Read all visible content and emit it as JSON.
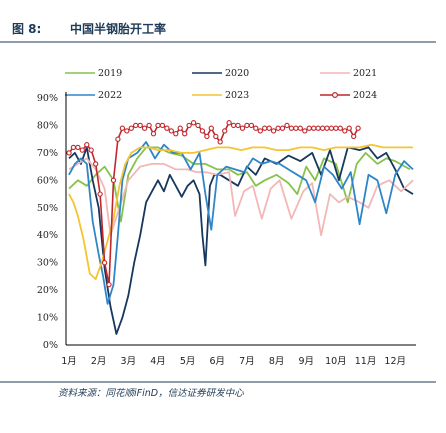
{
  "figure": {
    "label": "图 8:",
    "title": "中国半钢胎开工率"
  },
  "source": "资料来源：同花顺iFinD，信达证券研发中心",
  "chart_data": {
    "type": "line",
    "title": "中国半钢胎开工率",
    "xlabel": "",
    "ylabel": "",
    "ylim": [
      0,
      90
    ],
    "y_ticks": [
      "0%",
      "10%",
      "20%",
      "30%",
      "40%",
      "50%",
      "60%",
      "70%",
      "80%",
      "90%"
    ],
    "x_categories": [
      "1月",
      "2月",
      "3月",
      "4月",
      "5月",
      "6月",
      "7月",
      "8月",
      "9月",
      "10月",
      "11月",
      "12月"
    ],
    "legend": {
      "placement": "top",
      "entries": [
        "2019",
        "2020",
        "2021",
        "2022",
        "2023",
        "2024"
      ]
    },
    "series": [
      {
        "name": "2019",
        "color": "#86c24a",
        "x": [
          1.0,
          1.3,
          1.6,
          1.9,
          2.2,
          2.5,
          2.75,
          3.0,
          3.3,
          3.6,
          4.0,
          4.4,
          4.8,
          5.2,
          5.6,
          6.0,
          6.4,
          6.7,
          7.0,
          7.3,
          7.6,
          8.0,
          8.4,
          8.7,
          9.0,
          9.3,
          9.6,
          10.0,
          10.4,
          10.7,
          11.0,
          11.4,
          11.7,
          12.0,
          12.5
        ],
        "y": [
          57,
          60,
          58,
          62,
          65,
          60,
          45,
          62,
          68,
          72,
          72,
          70,
          69,
          66,
          66,
          64,
          64,
          62,
          63,
          58,
          60,
          62,
          59,
          55,
          65,
          60,
          68,
          66,
          52,
          66,
          70,
          66,
          68,
          67,
          64
        ]
      },
      {
        "name": "2020",
        "color": "#17375e",
        "x": [
          1.0,
          1.2,
          1.4,
          1.6,
          1.8,
          2.0,
          2.2,
          2.4,
          2.6,
          2.8,
          3.0,
          3.2,
          3.4,
          3.6,
          3.8,
          4.0,
          4.2,
          4.4,
          4.6,
          4.8,
          5.0,
          5.2,
          5.4,
          5.5,
          5.6,
          5.75,
          5.9,
          6.1,
          6.4,
          6.7,
          7.0,
          7.3,
          7.6,
          8.0,
          8.4,
          8.8,
          9.2,
          9.5,
          9.8,
          10.1,
          10.4,
          10.8,
          11.1,
          11.4,
          11.7,
          12.0,
          12.3,
          12.6
        ],
        "y": [
          68,
          70,
          66,
          72,
          60,
          50,
          28,
          14,
          4,
          10,
          18,
          30,
          40,
          52,
          56,
          60,
          56,
          62,
          58,
          54,
          58,
          60,
          55,
          40,
          29,
          58,
          62,
          62,
          60,
          58,
          65,
          62,
          68,
          66,
          69,
          67,
          70,
          62,
          71,
          60,
          72,
          71,
          72,
          68,
          70,
          64,
          57,
          55
        ]
      },
      {
        "name": "2021",
        "color": "#f2b7b7",
        "x": [
          1.0,
          1.3,
          1.6,
          1.9,
          2.2,
          2.4,
          2.7,
          3.0,
          3.4,
          3.8,
          4.2,
          4.6,
          5.0,
          5.3,
          5.6,
          6.0,
          6.4,
          6.6,
          6.9,
          7.2,
          7.5,
          7.8,
          8.1,
          8.5,
          8.9,
          9.2,
          9.5,
          9.8,
          10.1,
          10.4,
          10.8,
          11.1,
          11.4,
          11.8,
          12.2,
          12.6
        ],
        "y": [
          64,
          66,
          68,
          64,
          57,
          40,
          50,
          60,
          65,
          66,
          66,
          64,
          64,
          63,
          63,
          62,
          63,
          47,
          56,
          58,
          46,
          57,
          60,
          46,
          56,
          59,
          40,
          55,
          52,
          54,
          52,
          50,
          58,
          60,
          56,
          60
        ]
      },
      {
        "name": "2022",
        "color": "#2e86c8",
        "x": [
          1.0,
          1.2,
          1.4,
          1.6,
          1.8,
          2.0,
          2.15,
          2.3,
          2.5,
          2.65,
          2.8,
          3.0,
          3.3,
          3.6,
          3.9,
          4.2,
          4.5,
          4.8,
          5.1,
          5.4,
          5.6,
          5.8,
          6.0,
          6.3,
          6.6,
          6.9,
          7.2,
          7.5,
          7.8,
          8.1,
          8.4,
          8.7,
          9.0,
          9.3,
          9.6,
          9.9,
          10.2,
          10.5,
          10.8,
          11.1,
          11.4,
          11.7,
          12.0,
          12.3,
          12.6
        ],
        "y": [
          62,
          66,
          68,
          66,
          45,
          33,
          25,
          15,
          22,
          40,
          60,
          68,
          70,
          74,
          68,
          73,
          70,
          70,
          64,
          70,
          55,
          42,
          62,
          65,
          64,
          63,
          68,
          66,
          67,
          66,
          64,
          62,
          60,
          52,
          65,
          62,
          57,
          63,
          44,
          62,
          60,
          48,
          62,
          67,
          64
        ]
      },
      {
        "name": "2023",
        "color": "#f4c431",
        "x": [
          1.0,
          1.15,
          1.3,
          1.5,
          1.7,
          1.9,
          2.1,
          2.3,
          2.5,
          2.7,
          2.9,
          3.1,
          3.4,
          3.7,
          4.0,
          4.4,
          4.8,
          5.2,
          5.6,
          6.0,
          6.4,
          6.8,
          7.2,
          7.6,
          8.0,
          8.4,
          8.8,
          9.2,
          9.6,
          10.0,
          10.4,
          10.8,
          11.2,
          11.6,
          12.0,
          12.6
        ],
        "y": [
          55,
          52,
          47,
          38,
          26,
          24,
          30,
          38,
          46,
          58,
          66,
          70,
          72,
          72,
          71,
          71,
          70,
          70,
          71,
          72,
          72,
          71,
          72,
          72,
          71,
          71,
          72,
          72,
          71,
          72,
          72,
          72,
          73,
          72,
          72,
          72
        ]
      },
      {
        "name": "2024",
        "color": "#c0272d",
        "marker": "circle-open",
        "x": [
          1.0,
          1.15,
          1.3,
          1.45,
          1.6,
          1.75,
          1.9,
          2.05,
          2.2,
          2.35,
          2.5,
          2.65,
          2.8,
          2.95,
          3.1,
          3.25,
          3.4,
          3.55,
          3.7,
          3.85,
          4.0,
          4.15,
          4.3,
          4.45,
          4.6,
          4.75,
          4.9,
          5.05,
          5.2,
          5.35,
          5.5,
          5.65,
          5.8,
          5.95,
          6.1,
          6.25,
          6.4,
          6.55,
          6.7,
          6.85,
          7.0,
          7.15,
          7.3,
          7.45,
          7.6,
          7.75,
          7.9,
          8.05,
          8.2,
          8.35,
          8.5,
          8.65,
          8.8,
          8.95,
          9.1,
          9.25,
          9.4,
          9.55,
          9.7,
          9.85,
          10.0,
          10.15,
          10.3,
          10.45,
          10.6,
          10.75
        ],
        "y": [
          70,
          72,
          72,
          71,
          73,
          71,
          66,
          55,
          30,
          22,
          60,
          75,
          79,
          78,
          79,
          80,
          80,
          79,
          80,
          77,
          80,
          80,
          79,
          78,
          77,
          79,
          77,
          80,
          81,
          80,
          78,
          76,
          79,
          76,
          74,
          78,
          81,
          80,
          80,
          79,
          80,
          80,
          79,
          78,
          79,
          79,
          78,
          79,
          79,
          80,
          79,
          79,
          79,
          78,
          79,
          79,
          79,
          79,
          79,
          79,
          79,
          79,
          78,
          79,
          76,
          79
        ]
      }
    ]
  }
}
